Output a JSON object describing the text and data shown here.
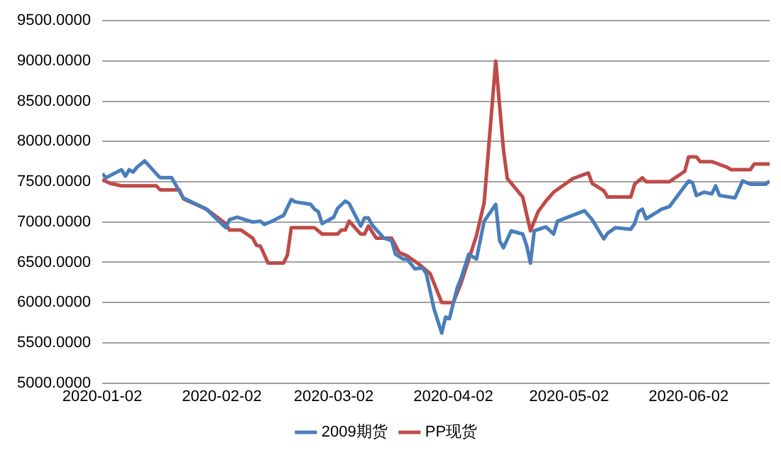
{
  "chart_data": {
    "type": "line",
    "series": [
      {
        "name": "2009期货",
        "color": "#4a7ebb",
        "x": [
          "2020-01-02",
          "2020-01-03",
          "2020-01-07",
          "2020-01-08",
          "2020-01-09",
          "2020-01-10",
          "2020-01-11",
          "2020-01-13",
          "2020-01-16",
          "2020-01-17",
          "2020-01-20",
          "2020-01-23",
          "2020-01-29",
          "2020-02-03",
          "2020-02-04",
          "2020-02-06",
          "2020-02-08",
          "2020-02-10",
          "2020-02-12",
          "2020-02-13",
          "2020-02-15",
          "2020-02-17",
          "2020-02-18",
          "2020-02-20",
          "2020-02-21",
          "2020-02-25",
          "2020-02-26",
          "2020-02-27",
          "2020-02-28",
          "2020-03-02",
          "2020-03-03",
          "2020-03-05",
          "2020-03-06",
          "2020-03-09",
          "2020-03-10",
          "2020-03-11",
          "2020-03-12",
          "2020-03-15",
          "2020-03-17",
          "2020-03-18",
          "2020-03-20",
          "2020-03-21",
          "2020-03-23",
          "2020-03-25",
          "2020-03-26",
          "2020-03-28",
          "2020-03-29",
          "2020-03-30",
          "2020-03-31",
          "2020-04-01",
          "2020-04-03",
          "2020-04-04",
          "2020-04-06",
          "2020-04-08",
          "2020-04-10",
          "2020-04-13",
          "2020-04-14",
          "2020-04-15",
          "2020-04-17",
          "2020-04-20",
          "2020-04-21",
          "2020-04-22",
          "2020-04-23",
          "2020-04-26",
          "2020-04-28",
          "2020-04-29",
          "2020-05-06",
          "2020-05-08",
          "2020-05-11",
          "2020-05-12",
          "2020-05-14",
          "2020-05-18",
          "2020-05-19",
          "2020-05-20",
          "2020-05-21",
          "2020-05-22",
          "2020-05-25",
          "2020-05-26",
          "2020-05-28",
          "2020-06-02",
          "2020-06-03",
          "2020-06-04",
          "2020-06-06",
          "2020-06-08",
          "2020-06-09",
          "2020-06-10",
          "2020-06-14",
          "2020-06-16",
          "2020-06-18",
          "2020-06-22",
          "2020-06-23"
        ],
        "values": [
          7600,
          7550,
          7650,
          7570,
          7650,
          7620,
          7680,
          7760,
          7600,
          7550,
          7550,
          7300,
          7160,
          6930,
          7030,
          7060,
          7030,
          7000,
          7010,
          6970,
          7010,
          7060,
          7080,
          7280,
          7250,
          7220,
          7160,
          7130,
          6980,
          7060,
          7170,
          7260,
          7230,
          6950,
          7050,
          7050,
          6960,
          6800,
          6770,
          6600,
          6540,
          6540,
          6420,
          6430,
          6360,
          5920,
          5770,
          5620,
          5820,
          5800,
          6180,
          6300,
          6600,
          6540,
          7010,
          7220,
          6770,
          6680,
          6890,
          6850,
          6710,
          6490,
          6890,
          6940,
          6850,
          7010,
          7140,
          7030,
          6790,
          6860,
          6930,
          6910,
          6980,
          7130,
          7160,
          7040,
          7130,
          7160,
          7190,
          7510,
          7490,
          7330,
          7370,
          7350,
          7450,
          7330,
          7300,
          7510,
          7470,
          7470,
          7510
        ]
      },
      {
        "name": "PP现货",
        "color": "#be4b48",
        "x": [
          "2020-01-02",
          "2020-01-04",
          "2020-01-07",
          "2020-01-16",
          "2020-01-17",
          "2020-01-22",
          "2020-01-23",
          "2020-01-29",
          "2020-02-03",
          "2020-02-04",
          "2020-02-07",
          "2020-02-10",
          "2020-02-11",
          "2020-02-12",
          "2020-02-14",
          "2020-02-18",
          "2020-02-19",
          "2020-02-20",
          "2020-02-26",
          "2020-02-28",
          "2020-03-03",
          "2020-03-04",
          "2020-03-05",
          "2020-03-06",
          "2020-03-09",
          "2020-03-10",
          "2020-03-11",
          "2020-03-13",
          "2020-03-15",
          "2020-03-17",
          "2020-03-19",
          "2020-03-21",
          "2020-03-24",
          "2020-03-27",
          "2020-03-30",
          "2020-04-02",
          "2020-04-04",
          "2020-04-08",
          "2020-04-10",
          "2020-04-13",
          "2020-04-15",
          "2020-04-16",
          "2020-04-20",
          "2020-04-22",
          "2020-04-24",
          "2020-04-26",
          "2020-04-28",
          "2020-05-03",
          "2020-05-07",
          "2020-05-08",
          "2020-05-11",
          "2020-05-12",
          "2020-05-18",
          "2020-05-19",
          "2020-05-21",
          "2020-05-22",
          "2020-05-28",
          "2020-06-01",
          "2020-06-02",
          "2020-06-04",
          "2020-06-05",
          "2020-06-08",
          "2020-06-12",
          "2020-06-13",
          "2020-06-18",
          "2020-06-19",
          "2020-06-23"
        ],
        "values": [
          7530,
          7480,
          7450,
          7450,
          7400,
          7400,
          7290,
          7160,
          6980,
          6900,
          6900,
          6800,
          6710,
          6700,
          6490,
          6490,
          6590,
          6930,
          6930,
          6850,
          6850,
          6900,
          6900,
          7010,
          6850,
          6850,
          6950,
          6800,
          6800,
          6800,
          6620,
          6580,
          6480,
          6360,
          6000,
          6000,
          6240,
          6830,
          7240,
          9000,
          7900,
          7540,
          7310,
          6890,
          7130,
          7260,
          7370,
          7540,
          7610,
          7480,
          7390,
          7310,
          7310,
          7470,
          7550,
          7500,
          7500,
          7630,
          7810,
          7810,
          7750,
          7750,
          7680,
          7650,
          7650,
          7720,
          7720
        ]
      }
    ],
    "xlim": [
      "2020-01-02",
      "2020-06-23"
    ],
    "xticks": [
      "2020-01-02",
      "2020-02-02",
      "2020-03-02",
      "2020-04-02",
      "2020-05-02",
      "2020-06-02"
    ],
    "ylim": [
      5000,
      9500
    ],
    "yticks": [
      {
        "value": 5000,
        "label": "5000.0000"
      },
      {
        "value": 5500,
        "label": "5500.0000"
      },
      {
        "value": 6000,
        "label": "6000.0000"
      },
      {
        "value": 6500,
        "label": "6500.0000"
      },
      {
        "value": 7000,
        "label": "7000.0000"
      },
      {
        "value": 7500,
        "label": "7500.0000"
      },
      {
        "value": 8000,
        "label": "8000.0000"
      },
      {
        "value": 8500,
        "label": "8500.0000"
      },
      {
        "value": 9000,
        "label": "9000.0000"
      },
      {
        "value": 9500,
        "label": "9500.0000"
      }
    ],
    "grid": "y",
    "legend": "bottom",
    "marker": "none",
    "line_style": "solid"
  }
}
